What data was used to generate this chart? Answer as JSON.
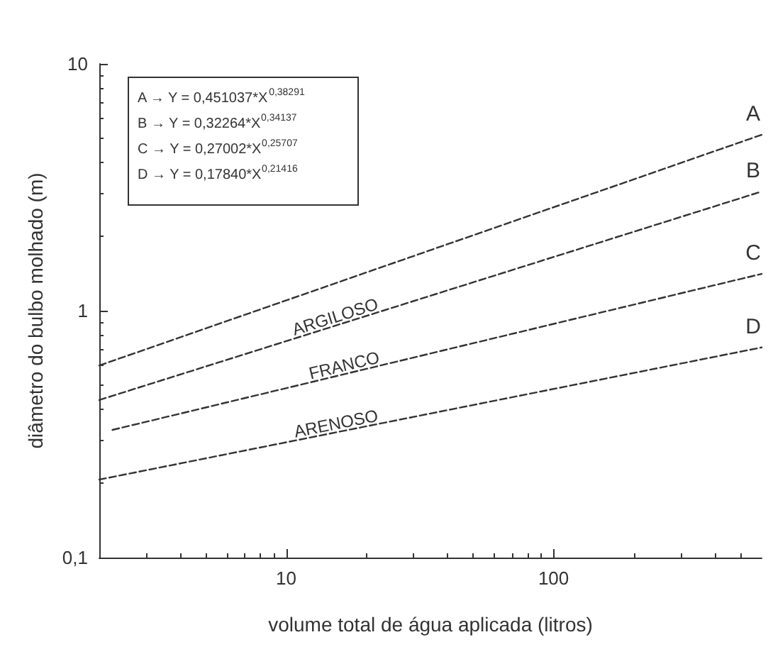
{
  "chart_data": {
    "type": "line",
    "xlabel": "volume total de água aplicada (litros)",
    "ylabel": "diâmetro do bulbo molhado (m)",
    "x": [
      2,
      600
    ],
    "series": [
      {
        "name": "A",
        "color": "#333333",
        "values": [
          0.6,
          5.16
        ]
      },
      {
        "name": "B",
        "color": "#333333",
        "values": [
          0.435,
          3.04
        ]
      },
      {
        "name": "C",
        "color": "#333333",
        "x": [
          2.24,
          600
        ],
        "values": [
          0.329,
          1.41
        ]
      },
      {
        "name": "D",
        "color": "#333333",
        "values": [
          0.207,
          0.71
        ]
      }
    ],
    "xlim": [
      2,
      600
    ],
    "xticks": [
      10,
      100
    ],
    "ylim": [
      0.1,
      10
    ],
    "yticks": [
      {
        "value": 0.1,
        "label": "0,1"
      },
      1,
      10
    ],
    "log": "xy",
    "grid": false,
    "legend": false,
    "marker": "none",
    "line_style": "dashed",
    "annotations": [
      "A → Y = 0,451037*X$^{0,38291}$",
      "B → Y = 0,32264*X$^{0,34137}$",
      "C → Y = 0,27002*X$^{0,25707}$",
      "D → Y = 0,17840*X$^{0,21416}$",
      "ARGILOSO",
      "FRANCO",
      "ARENOSO"
    ]
  }
}
